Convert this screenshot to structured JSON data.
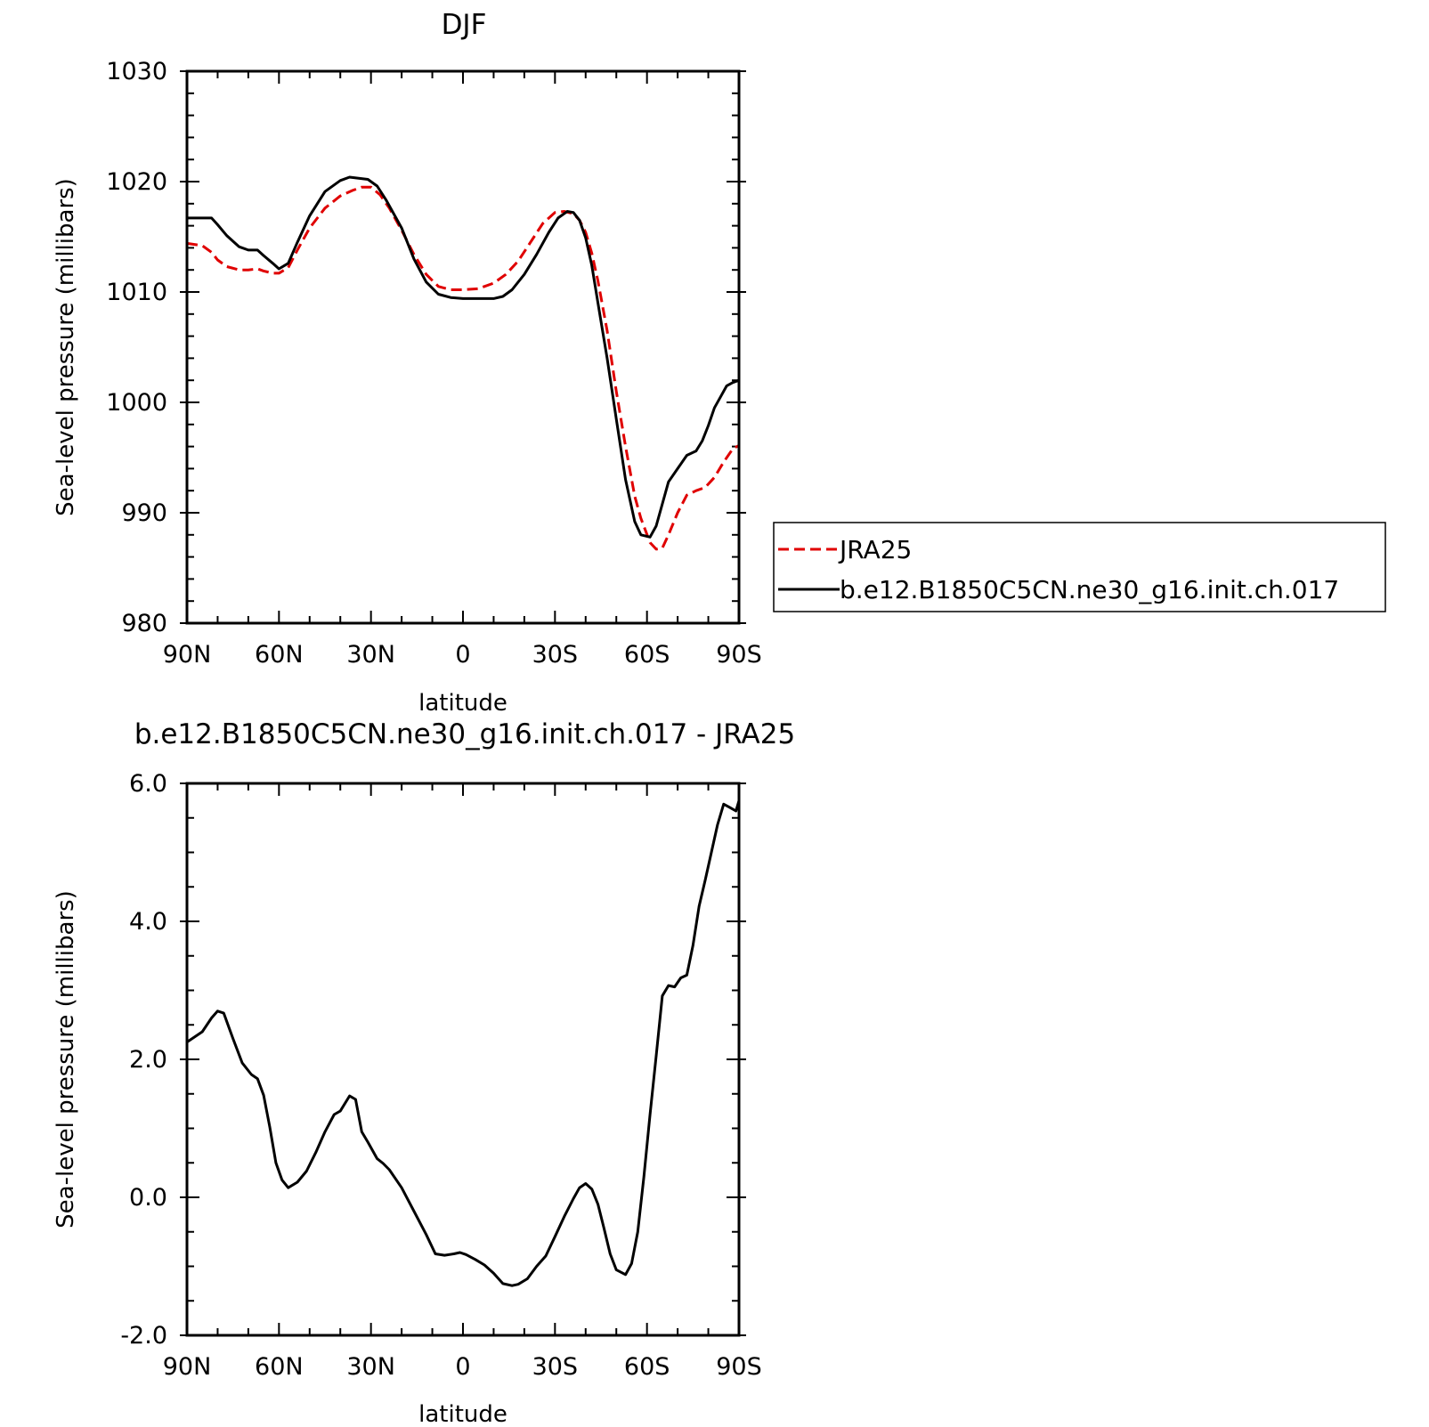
{
  "chart_data": [
    {
      "type": "line",
      "title": "DJF",
      "xlabel": "latitude",
      "ylabel": "Sea-level pressure (millibars)",
      "xlim": [
        90,
        -90
      ],
      "ylim": [
        980,
        1030
      ],
      "x_tick_labels": [
        "90N",
        "60N",
        "30N",
        "0",
        "30S",
        "60S",
        "90S"
      ],
      "y_tick_labels": [
        "980",
        "990",
        "1000",
        "1010",
        "1020",
        "1030"
      ],
      "legend": {
        "placement": "right",
        "entries": [
          "JRA25",
          "b.e12.B1850C5CN.ne30_g16.init.ch.017"
        ]
      },
      "series": [
        {
          "name": "JRA25",
          "color": "#e00000",
          "dash": true,
          "x": [
            90,
            85,
            82,
            80,
            77,
            73,
            70,
            67,
            65,
            62,
            60,
            57,
            54,
            50,
            45,
            40,
            36,
            33,
            30,
            27,
            24,
            20,
            16,
            12,
            8,
            4,
            0,
            -5,
            -10,
            -14,
            -18,
            -22,
            -26,
            -30,
            -33,
            -36,
            -38,
            -40,
            -42,
            -44,
            -47,
            -50,
            -53,
            -56,
            -58,
            -61,
            -63,
            -65,
            -67,
            -70,
            -73,
            -76,
            -79,
            -82,
            -85,
            -88,
            -90
          ],
          "y": [
            1014.4,
            1014.2,
            1013.6,
            1012.9,
            1012.3,
            1012.0,
            1012.0,
            1012.1,
            1011.9,
            1011.7,
            1011.7,
            1012.2,
            1013.8,
            1015.8,
            1017.6,
            1018.7,
            1019.2,
            1019.5,
            1019.5,
            1018.8,
            1017.6,
            1015.6,
            1013.4,
            1011.6,
            1010.5,
            1010.2,
            1010.2,
            1010.3,
            1010.8,
            1011.6,
            1012.8,
            1014.5,
            1016.2,
            1017.2,
            1017.3,
            1017.1,
            1016.5,
            1015.4,
            1013.5,
            1011.0,
            1006.5,
            1001.0,
            996.0,
            991.5,
            989.5,
            987.3,
            986.7,
            986.8,
            988.0,
            990.0,
            991.6,
            992.0,
            992.3,
            993.2,
            994.6,
            995.8,
            996.1
          ]
        },
        {
          "name": "b.e12.B1850C5CN.ne30_g16.init.ch.017",
          "color": "#000000",
          "dash": false,
          "x": [
            90,
            85,
            82,
            80,
            77,
            73,
            70,
            67,
            65,
            62,
            60,
            57,
            54,
            50,
            45,
            40,
            37,
            34,
            31,
            28,
            25,
            20,
            16,
            12,
            8,
            4,
            0,
            -5,
            -10,
            -13,
            -16,
            -20,
            -24,
            -28,
            -31,
            -34,
            -36,
            -38,
            -40,
            -42,
            -44,
            -47,
            -50,
            -53,
            -56,
            -58,
            -61,
            -63,
            -65,
            -67,
            -70,
            -73,
            -76,
            -78,
            -80,
            -82,
            -84,
            -86,
            -88,
            -90
          ],
          "y": [
            1016.7,
            1016.7,
            1016.7,
            1016.1,
            1015.1,
            1014.1,
            1013.8,
            1013.8,
            1013.3,
            1012.6,
            1012.1,
            1012.6,
            1014.5,
            1016.9,
            1019.1,
            1020.1,
            1020.4,
            1020.3,
            1020.2,
            1019.6,
            1018.3,
            1015.8,
            1013.0,
            1010.9,
            1009.8,
            1009.5,
            1009.4,
            1009.4,
            1009.4,
            1009.6,
            1010.2,
            1011.6,
            1013.4,
            1015.4,
            1016.7,
            1017.3,
            1017.2,
            1016.5,
            1014.9,
            1012.4,
            1009.0,
            1004.0,
            998.5,
            993.0,
            989.2,
            988.0,
            987.8,
            988.8,
            990.8,
            992.8,
            994.0,
            995.2,
            995.6,
            996.5,
            997.9,
            999.5,
            1000.5,
            1001.5,
            1001.8,
            1002.0
          ]
        }
      ]
    },
    {
      "type": "line",
      "title": "b.e12.B1850C5CN.ne30_g16.init.ch.017 - JRA25",
      "xlabel": "latitude",
      "ylabel": "Sea-level pressure (millibars)",
      "xlim": [
        90,
        -90
      ],
      "ylim": [
        -2,
        6
      ],
      "x_tick_labels": [
        "90N",
        "60N",
        "30N",
        "0",
        "30S",
        "60S",
        "90S"
      ],
      "y_tick_labels": [
        "-2.0",
        "0.0",
        "2.0",
        "4.0",
        "6.0"
      ],
      "series": [
        {
          "color": "#000000",
          "dash": false,
          "x": [
            90,
            85,
            82,
            80,
            78,
            75,
            72,
            69,
            67,
            65,
            63,
            61,
            59,
            57,
            54,
            51,
            48,
            45,
            42,
            40,
            37,
            35,
            33,
            31,
            28,
            26,
            24,
            20,
            16,
            12,
            9,
            6,
            3,
            1,
            -1,
            -4,
            -7,
            -10,
            -13,
            -16,
            -18,
            -21,
            -24,
            -27,
            -30,
            -33,
            -36,
            -38,
            -40,
            -42,
            -44,
            -46,
            -48,
            -50,
            -53,
            -55,
            -57,
            -59,
            -61,
            -63,
            -65,
            -67,
            -69,
            -71,
            -73,
            -75,
            -77,
            -79,
            -81,
            -83,
            -85,
            -87,
            -89,
            -90
          ],
          "y": [
            2.25,
            2.4,
            2.6,
            2.7,
            2.67,
            2.3,
            1.95,
            1.78,
            1.72,
            1.48,
            1.02,
            0.5,
            0.25,
            0.14,
            0.22,
            0.38,
            0.65,
            0.95,
            1.2,
            1.25,
            1.47,
            1.42,
            0.95,
            0.8,
            0.56,
            0.49,
            0.4,
            0.14,
            -0.2,
            -0.54,
            -0.82,
            -0.84,
            -0.82,
            -0.8,
            -0.83,
            -0.9,
            -0.98,
            -1.1,
            -1.25,
            -1.28,
            -1.26,
            -1.18,
            -1.0,
            -0.85,
            -0.57,
            -0.28,
            -0.02,
            0.14,
            0.2,
            0.12,
            -0.1,
            -0.45,
            -0.82,
            -1.05,
            -1.12,
            -0.96,
            -0.5,
            0.3,
            1.2,
            2.05,
            2.92,
            3.07,
            3.05,
            3.18,
            3.22,
            3.65,
            4.22,
            4.6,
            5.0,
            5.4,
            5.7,
            5.65,
            5.6,
            5.75
          ]
        }
      ]
    }
  ]
}
